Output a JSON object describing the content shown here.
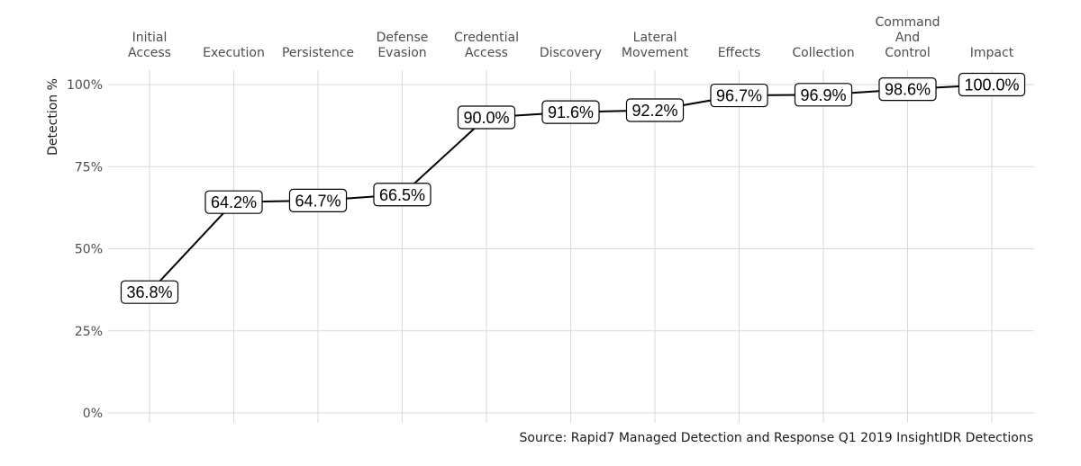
{
  "chart_data": {
    "type": "line",
    "categories": [
      "Initial Access",
      "Execution",
      "Persistence",
      "Defense Evasion",
      "Credential Access",
      "Discovery",
      "Lateral Movement",
      "Effects",
      "Collection",
      "Command And Control",
      "Impact"
    ],
    "category_lines": [
      [
        "Initial",
        "Access"
      ],
      [
        "Execution"
      ],
      [
        "Persistence"
      ],
      [
        "Defense",
        "Evasion"
      ],
      [
        "Credential",
        "Access"
      ],
      [
        "Discovery"
      ],
      [
        "Lateral",
        "Movement"
      ],
      [
        "Effects"
      ],
      [
        "Collection"
      ],
      [
        "Command",
        "And",
        "Control"
      ],
      [
        "Impact"
      ]
    ],
    "values": [
      36.8,
      64.2,
      64.7,
      66.5,
      90.0,
      91.6,
      92.2,
      96.7,
      96.9,
      98.6,
      100.0
    ],
    "data_labels": [
      "36.8%",
      "64.2%",
      "64.7%",
      "66.5%",
      "90.0%",
      "91.6%",
      "92.2%",
      "96.7%",
      "96.9%",
      "98.6%",
      "100.0%"
    ],
    "ylabel": "Detection %",
    "yticks": [
      0,
      25,
      50,
      75,
      100
    ],
    "ytick_labels": [
      "0%",
      "25%",
      "50%",
      "75%",
      "100%"
    ],
    "ylim": [
      0,
      100
    ],
    "x_axis_position": "top",
    "grid": true,
    "legend": "none",
    "line_color": "#000000",
    "caption": "Source: Rapid7 Managed Detection and Response Q1 2019 InsightIDR Detections"
  }
}
